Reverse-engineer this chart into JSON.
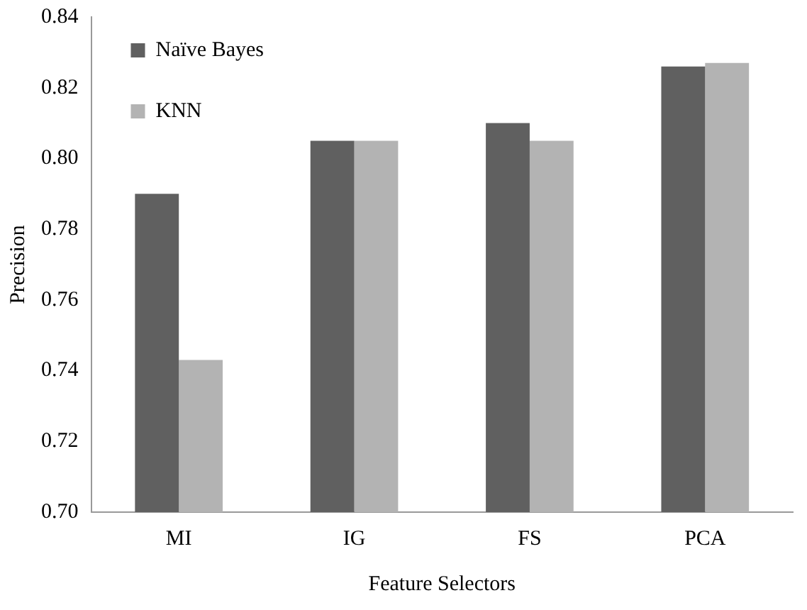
{
  "chart_data": {
    "type": "bar",
    "xlabel": "Feature Selectors",
    "ylabel": "Precision",
    "categories": [
      "MI",
      "IG",
      "FS",
      "PCA"
    ],
    "series": [
      {
        "name": "Naïve Bayes",
        "color": "#606060",
        "values": [
          0.79,
          0.805,
          0.81,
          0.826
        ]
      },
      {
        "name": "KNN",
        "color": "#b3b3b3",
        "values": [
          0.743,
          0.805,
          0.805,
          0.827
        ]
      }
    ],
    "ylim": [
      0.7,
      0.84
    ],
    "yticks": [
      {
        "value": 0.7,
        "label": "0.70"
      },
      {
        "value": 0.72,
        "label": "0.72"
      },
      {
        "value": 0.74,
        "label": "0.74"
      },
      {
        "value": 0.76,
        "label": "0.76"
      },
      {
        "value": 0.78,
        "label": "0.78"
      },
      {
        "value": 0.8,
        "label": "0.80"
      },
      {
        "value": 0.82,
        "label": "0.82"
      },
      {
        "value": 0.84,
        "label": "0.84"
      }
    ],
    "grid": false,
    "legend": "top left"
  }
}
